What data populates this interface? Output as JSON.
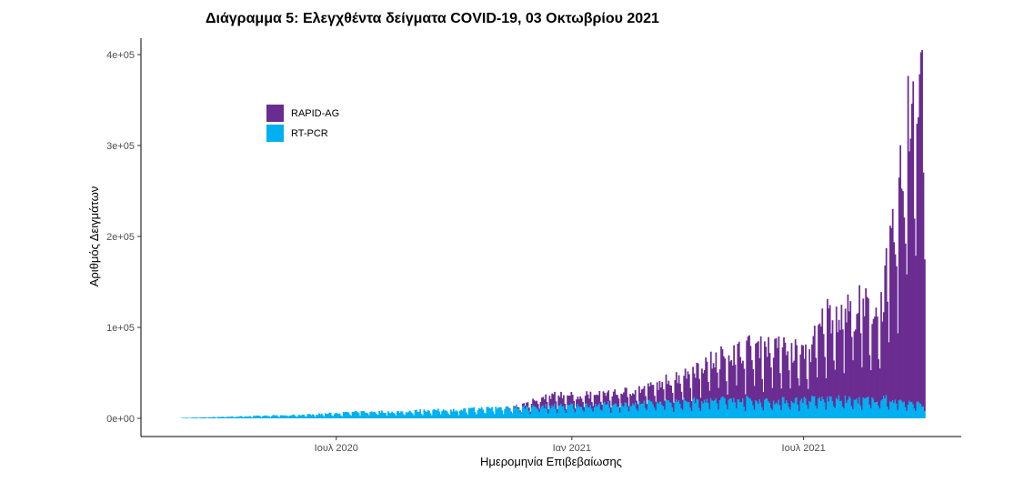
{
  "chart_data": {
    "type": "bar",
    "title": "Διάγραμμα 5: Ελεγχθέντα δείγματα COVID-19, 03 Οκτωβρίου 2021",
    "xlabel": "Ημερομηνία Επιβεβαίωσης",
    "ylabel": "Αριθμός Δειγμάτων",
    "x_range": [
      "2020-03-01",
      "2021-10-03"
    ],
    "ylim": [
      0,
      400000
    ],
    "y_ticks": [
      0,
      100000,
      200000,
      300000,
      400000
    ],
    "y_tick_labels": [
      "0e+00",
      "1e+05",
      "2e+05",
      "3e+05",
      "4e+05"
    ],
    "x_ticks": [
      "2020-07-01",
      "2021-01-01",
      "2021-07-01"
    ],
    "x_tick_labels": [
      "Ιουλ 2020",
      "Ιαν 2021",
      "Ιουλ 2021"
    ],
    "grid": false,
    "legend_position": "top-left",
    "stacked": true,
    "weekly_series": {
      "week_start": [
        "2020-03-01",
        "2020-03-15",
        "2020-03-29",
        "2020-04-12",
        "2020-04-26",
        "2020-05-10",
        "2020-05-24",
        "2020-06-07",
        "2020-06-21",
        "2020-07-05",
        "2020-07-19",
        "2020-08-02",
        "2020-08-16",
        "2020-08-30",
        "2020-09-13",
        "2020-09-27",
        "2020-10-11",
        "2020-10-25",
        "2020-11-08",
        "2020-11-22",
        "2020-12-06",
        "2020-12-20",
        "2021-01-03",
        "2021-01-17",
        "2021-01-31",
        "2021-02-14",
        "2021-02-28",
        "2021-03-14",
        "2021-03-28",
        "2021-04-11",
        "2021-04-25",
        "2021-05-09",
        "2021-05-23",
        "2021-06-06",
        "2021-06-20",
        "2021-07-04",
        "2021-07-18",
        "2021-08-01",
        "2021-08-15",
        "2021-08-29",
        "2021-09-12",
        "2021-09-26"
      ],
      "series": [
        {
          "name": "RAPID-AG",
          "values": [
            0,
            0,
            0,
            0,
            0,
            0,
            0,
            0,
            0,
            0,
            0,
            0,
            0,
            0,
            0,
            0,
            0,
            0,
            0,
            2000,
            8000,
            12000,
            10000,
            12000,
            12000,
            14000,
            16000,
            22000,
            28000,
            38000,
            45000,
            52000,
            58000,
            60000,
            55000,
            50000,
            90000,
            100000,
            100000,
            95000,
            200000,
            380000
          ]
        },
        {
          "name": "RT-PCR",
          "values": [
            500,
            1000,
            1500,
            2000,
            2500,
            3000,
            3500,
            4000,
            5000,
            6000,
            7000,
            7500,
            7000,
            8000,
            9000,
            9000,
            10000,
            11000,
            12000,
            12000,
            13000,
            14000,
            14000,
            15000,
            16000,
            16000,
            17000,
            18000,
            19000,
            20000,
            21000,
            22000,
            20000,
            19000,
            20000,
            21000,
            22000,
            21000,
            20000,
            22000,
            20000,
            16000
          ]
        }
      ],
      "colors": {
        "RAPID-AG": "#6a2c91",
        "RT-PCR": "#00b0f0"
      }
    }
  },
  "legend": {
    "items": [
      {
        "label": "RAPID-AG",
        "color": "#6a2c91"
      },
      {
        "label": "RT-PCR",
        "color": "#00b0f0"
      }
    ]
  }
}
